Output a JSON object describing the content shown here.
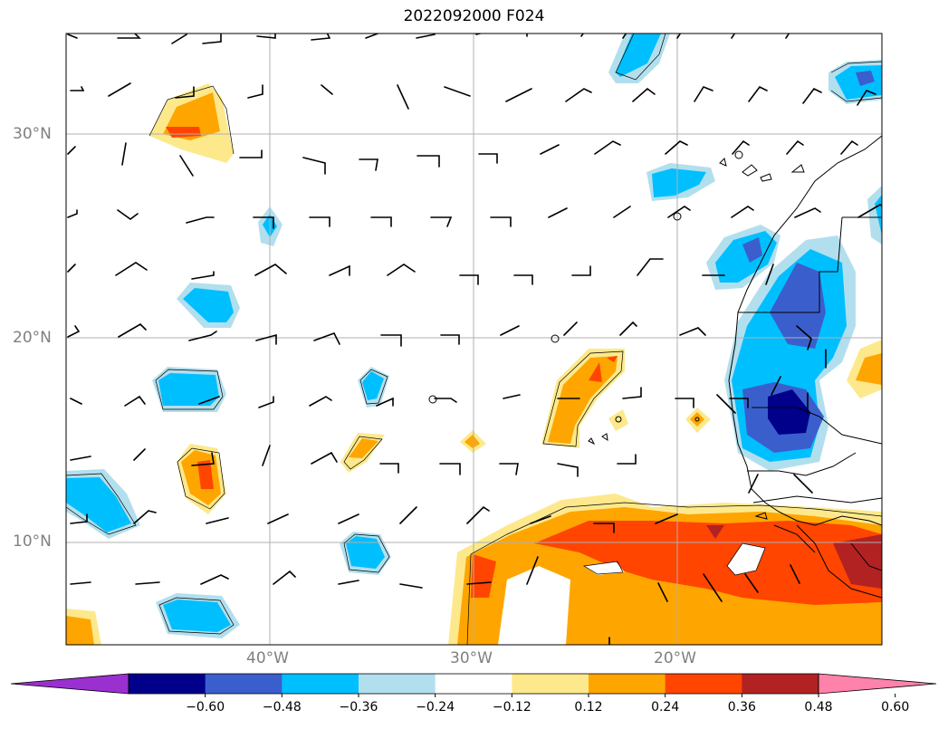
{
  "title": "2022092000 F024",
  "lat_labels": [
    "30°N",
    "20°N",
    "10°N"
  ],
  "lon_labels": [
    "40°W",
    "30°W",
    "20°W"
  ],
  "colorbar": {
    "ticks": [
      "−0.60",
      "−0.48",
      "−0.36",
      "−0.24",
      "−0.12",
      "0.12",
      "0.24",
      "0.36",
      "0.48",
      "0.60"
    ],
    "colors": [
      "#9b30d0",
      "#00008b",
      "#3a5fcd",
      "#00bfff",
      "#b2dfee",
      "#ffffff",
      "#fde98c",
      "#ffa500",
      "#ff4500",
      "#b22222",
      "#ff82ab"
    ]
  },
  "map": {
    "extent_lon": [
      -50,
      -10
    ],
    "extent_lat": [
      5,
      35
    ],
    "gridlines": true,
    "features": [
      "coastlines",
      "borders",
      "wind-barbs",
      "shaded-field"
    ]
  }
}
